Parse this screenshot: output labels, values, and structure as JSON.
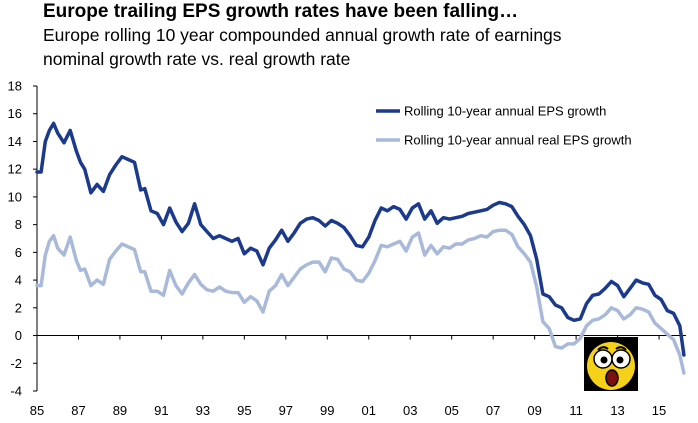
{
  "title": "Europe trailing EPS growth rates have been falling…",
  "subtitle_line1": "Europe rolling 10 year compounded annual growth rate of earnings",
  "subtitle_line2": "nominal growth rate vs. real growth rate",
  "colors": {
    "nominal": "#1b3a8c",
    "real": "#a9b9d9",
    "axis": "#000000"
  },
  "emoji_icon": "shocked-face-emoji-icon",
  "chart_data": {
    "type": "line",
    "legend_position": "top-right",
    "grid": false,
    "xlim": [
      1985,
      2016.3
    ],
    "ylim": [
      -4,
      18
    ],
    "x_tick_values": [
      1985,
      1987,
      1989,
      1991,
      1993,
      1995,
      1997,
      1999,
      2001,
      2003,
      2005,
      2007,
      2009,
      2011,
      2013,
      2015
    ],
    "x_tick_labels": [
      "85",
      "87",
      "89",
      "91",
      "93",
      "95",
      "97",
      "99",
      "01",
      "03",
      "05",
      "07",
      "09",
      "11",
      "13",
      "15"
    ],
    "y_ticks": [
      -4,
      -2,
      0,
      2,
      4,
      6,
      8,
      10,
      12,
      14,
      16,
      18
    ],
    "series": [
      {
        "name": "Rolling 10-year annual EPS growth",
        "x": [
          1985.0,
          1985.2,
          1985.4,
          1985.6,
          1985.8,
          1986.0,
          1986.3,
          1986.6,
          1986.9,
          1987.1,
          1987.3,
          1987.6,
          1987.9,
          1988.2,
          1988.5,
          1988.8,
          1989.1,
          1989.4,
          1989.7,
          1990.0,
          1990.2,
          1990.5,
          1990.8,
          1991.1,
          1991.4,
          1991.7,
          1992.0,
          1992.3,
          1992.6,
          1992.9,
          1993.2,
          1993.5,
          1993.8,
          1994.1,
          1994.4,
          1994.7,
          1995.0,
          1995.3,
          1995.6,
          1995.9,
          1996.2,
          1996.5,
          1996.8,
          1997.1,
          1997.4,
          1997.7,
          1998.0,
          1998.3,
          1998.6,
          1998.9,
          1999.2,
          1999.5,
          1999.8,
          2000.1,
          2000.4,
          2000.7,
          2001.0,
          2001.3,
          2001.6,
          2001.9,
          2002.2,
          2002.5,
          2002.8,
          2003.1,
          2003.4,
          2003.7,
          2004.0,
          2004.3,
          2004.6,
          2004.9,
          2005.2,
          2005.5,
          2005.8,
          2006.1,
          2006.4,
          2006.7,
          2007.0,
          2007.3,
          2007.6,
          2007.9,
          2008.2,
          2008.5,
          2008.8,
          2009.1,
          2009.4,
          2009.7,
          2010.0,
          2010.3,
          2010.6,
          2010.9,
          2011.2,
          2011.5,
          2011.8,
          2012.1,
          2012.4,
          2012.7,
          2013.0,
          2013.3,
          2013.6,
          2013.9,
          2014.2,
          2014.5,
          2014.8,
          2015.1,
          2015.4,
          2015.7,
          2016.0,
          2016.2
        ],
        "y": [
          11.8,
          11.8,
          14.0,
          14.8,
          15.3,
          14.6,
          13.9,
          14.8,
          13.3,
          12.5,
          12.0,
          10.3,
          10.9,
          10.4,
          11.6,
          12.3,
          12.9,
          12.7,
          12.5,
          10.5,
          10.6,
          9.0,
          8.8,
          8.0,
          9.2,
          8.2,
          7.5,
          8.1,
          9.5,
          8.0,
          7.5,
          7.0,
          7.2,
          7.0,
          6.8,
          7.0,
          5.9,
          6.3,
          6.1,
          5.1,
          6.3,
          6.9,
          7.6,
          6.8,
          7.4,
          8.1,
          8.4,
          8.5,
          8.3,
          7.9,
          8.3,
          8.1,
          7.8,
          7.2,
          6.5,
          6.4,
          7.1,
          8.3,
          9.2,
          9.0,
          9.3,
          9.1,
          8.4,
          9.2,
          9.5,
          8.4,
          9.0,
          8.1,
          8.5,
          8.4,
          8.5,
          8.6,
          8.8,
          8.9,
          9.0,
          9.1,
          9.4,
          9.6,
          9.5,
          9.3,
          8.6,
          8.0,
          7.2,
          5.5,
          3.0,
          2.8,
          2.2,
          2.0,
          1.3,
          1.1,
          1.2,
          2.3,
          2.9,
          3.0,
          3.4,
          3.9,
          3.6,
          2.8,
          3.4,
          4.0,
          3.8,
          3.7,
          2.9,
          2.6,
          1.8,
          1.6,
          0.7,
          -1.4
        ]
      },
      {
        "name": "Rolling 10-year annual real EPS growth",
        "x": [
          1985.0,
          1985.2,
          1985.4,
          1985.6,
          1985.8,
          1986.0,
          1986.3,
          1986.6,
          1986.9,
          1987.1,
          1987.3,
          1987.6,
          1987.9,
          1988.2,
          1988.5,
          1988.8,
          1989.1,
          1989.4,
          1989.7,
          1990.0,
          1990.2,
          1990.5,
          1990.8,
          1991.1,
          1991.4,
          1991.7,
          1992.0,
          1992.3,
          1992.6,
          1992.9,
          1993.2,
          1993.5,
          1993.8,
          1994.1,
          1994.4,
          1994.7,
          1995.0,
          1995.3,
          1995.6,
          1995.9,
          1996.2,
          1996.5,
          1996.8,
          1997.1,
          1997.4,
          1997.7,
          1998.0,
          1998.3,
          1998.6,
          1998.9,
          1999.2,
          1999.5,
          1999.8,
          2000.1,
          2000.4,
          2000.7,
          2001.0,
          2001.3,
          2001.6,
          2001.9,
          2002.2,
          2002.5,
          2002.8,
          2003.1,
          2003.4,
          2003.7,
          2004.0,
          2004.3,
          2004.6,
          2004.9,
          2005.2,
          2005.5,
          2005.8,
          2006.1,
          2006.4,
          2006.7,
          2007.0,
          2007.3,
          2007.6,
          2007.9,
          2008.2,
          2008.5,
          2008.8,
          2009.1,
          2009.4,
          2009.7,
          2010.0,
          2010.3,
          2010.6,
          2010.9,
          2011.2,
          2011.5,
          2011.8,
          2012.1,
          2012.4,
          2012.7,
          2013.0,
          2013.3,
          2013.6,
          2013.9,
          2014.2,
          2014.5,
          2014.8,
          2015.1,
          2015.4,
          2015.7,
          2016.0,
          2016.2
        ],
        "y": [
          3.6,
          3.6,
          5.8,
          6.8,
          7.2,
          6.3,
          5.8,
          7.1,
          5.4,
          4.7,
          4.8,
          3.6,
          4.0,
          3.7,
          5.5,
          6.1,
          6.6,
          6.4,
          6.2,
          4.6,
          4.6,
          3.2,
          3.2,
          2.9,
          4.7,
          3.6,
          3.0,
          3.8,
          4.4,
          3.7,
          3.3,
          3.2,
          3.5,
          3.2,
          3.1,
          3.1,
          2.4,
          2.8,
          2.5,
          1.7,
          3.2,
          3.6,
          4.4,
          3.6,
          4.2,
          4.8,
          5.1,
          5.3,
          5.3,
          4.6,
          5.6,
          5.5,
          4.8,
          4.6,
          4.0,
          3.9,
          4.5,
          5.4,
          6.5,
          6.4,
          6.6,
          6.8,
          6.1,
          7.1,
          7.4,
          5.8,
          6.5,
          5.9,
          6.4,
          6.3,
          6.6,
          6.6,
          6.9,
          7.0,
          7.2,
          7.1,
          7.5,
          7.6,
          7.6,
          7.3,
          6.4,
          5.9,
          5.3,
          3.5,
          1.0,
          0.5,
          -0.8,
          -0.9,
          -0.6,
          -0.6,
          -0.2,
          0.7,
          1.1,
          1.2,
          1.5,
          2.0,
          1.8,
          1.2,
          1.5,
          2.0,
          1.9,
          1.7,
          0.9,
          0.5,
          0.1,
          -0.3,
          -1.4,
          -2.7
        ]
      }
    ]
  }
}
